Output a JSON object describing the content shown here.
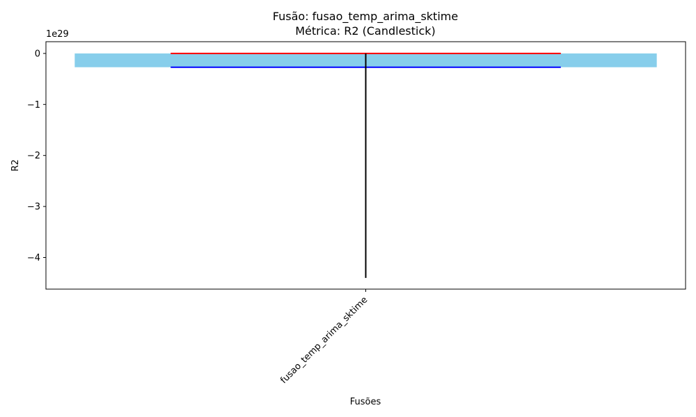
{
  "chart_data": {
    "type": "candlestick",
    "title": "Fusão: fusao_temp_arima_sktime",
    "subtitle": "Métrica: R2 (Candlestick)",
    "xlabel": "Fusões",
    "ylabel": "R2",
    "y_offset_label": "1e29",
    "y_scale": 1e+29,
    "ylim": [
      -4.62,
      0.23
    ],
    "categories": [
      "fusao_temp_arima_sktime"
    ],
    "yticks": [
      0,
      -1,
      -2,
      -3,
      -4
    ],
    "ytick_labels": [
      "0",
      "−1",
      "−2",
      "−3",
      "−4"
    ],
    "candles": [
      {
        "category": "fusao_temp_arima_sktime",
        "open": -0.27,
        "close": 0.0,
        "high": 0.0,
        "low": -4.4
      }
    ],
    "grid": false,
    "legend": "none",
    "colors": {
      "body": "#87ceeb",
      "close_line": "#ff0000",
      "open_line": "#0000ff",
      "wick": "#000000"
    }
  }
}
